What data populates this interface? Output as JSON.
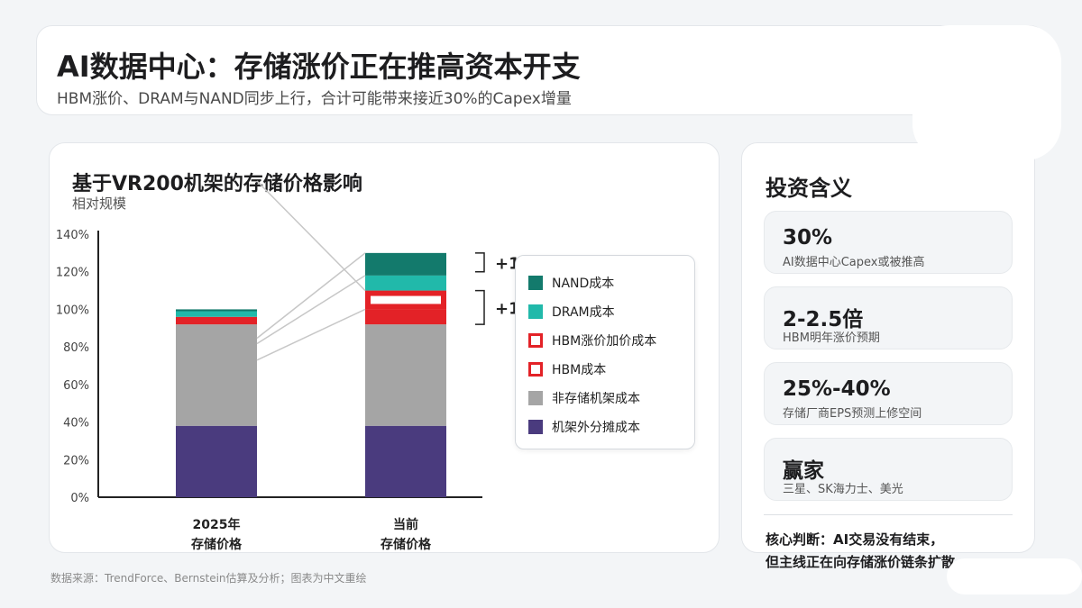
{
  "header": {
    "title": "AI数据中心：存储涨价正在推高资本开支",
    "subtitle": "HBM涨价、DRAM与NAND同步上行，合计可能带来接近30%的Capex增量"
  },
  "chart_card": {
    "title": "基于VR200机架的存储价格影响",
    "subtitle": "相对规模"
  },
  "colors": {
    "nand": "#137a6c",
    "dram": "#21b9aa",
    "hbm_red": "#e32227",
    "non_storage": "#a5a5a5",
    "amortized": "#4a3b7e"
  },
  "chart_data": {
    "type": "bar",
    "stacked": true,
    "categories": [
      "2025年\n存储价格",
      "当前\n存储价格"
    ],
    "y_ticks": [
      "0%",
      "20%",
      "40%",
      "60%",
      "80%",
      "100%",
      "120%",
      "140%"
    ],
    "ylim": [
      0,
      140
    ],
    "grid": false,
    "legend_position": "right",
    "series": [
      {
        "name": "机架外分摊成本",
        "color": "#4a3b7e",
        "style": "solid",
        "values": [
          38,
          38
        ]
      },
      {
        "name": "非存储机架成本",
        "color": "#a5a5a5",
        "style": "solid",
        "values": [
          54,
          54
        ]
      },
      {
        "name": "HBM成本",
        "color": "#e32227",
        "style": "solid",
        "values": [
          4,
          8
        ]
      },
      {
        "name": "HBM涨价加价成本",
        "color": "#e32227",
        "style": "outline",
        "values": [
          0,
          10
        ]
      },
      {
        "name": "DRAM成本",
        "color": "#21b9aa",
        "style": "solid",
        "values": [
          3,
          8
        ]
      },
      {
        "name": "NAND成本",
        "color": "#137a6c",
        "style": "solid",
        "values": [
          1,
          12
        ]
      }
    ],
    "legend_order": [
      "NAND成本",
      "DRAM成本",
      "HBM涨价加价成本",
      "HBM成本",
      "非存储机架成本",
      "机架外分摊成本"
    ],
    "annotations": [
      "+1",
      "+1"
    ]
  },
  "side": {
    "title": "投资含义",
    "metrics": [
      {
        "value": "30%",
        "desc": "AI数据中心Capex或被推高"
      },
      {
        "value": "2-2.5倍",
        "desc": "HBM明年涨价预期"
      },
      {
        "value": "25%-40%",
        "desc": "存储厂商EPS预测上修空间"
      },
      {
        "value": "赢家",
        "desc": "三星、SK海力士、美光"
      }
    ],
    "conclusion_line1": "核心判断：AI交易没有结束，",
    "conclusion_line2": "但主线正在向存储涨价链条扩散。"
  },
  "source": "数据来源：TrendForce、Bernstein估算及分析；图表为中文重绘"
}
